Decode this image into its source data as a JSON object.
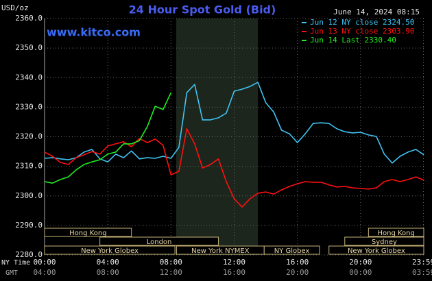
{
  "chart_data": {
    "type": "line",
    "title": "24 Hour Spot Gold (Bid)",
    "source": "www.kitco.com",
    "timestamp": "June 14, 2024 08:15",
    "y_label": "USD/oz",
    "x_label": "NY Time",
    "x2_label": "GMT",
    "x": [
      0,
      0.5,
      1,
      1.5,
      2,
      2.5,
      3,
      3.5,
      4,
      4.5,
      5,
      5.5,
      6,
      6.5,
      7,
      7.5,
      8,
      8.5,
      9,
      9.5,
      10,
      10.5,
      11,
      11.5,
      12,
      12.5,
      13,
      13.5,
      14,
      14.5,
      15,
      15.5,
      16,
      16.5,
      17,
      17.5,
      18,
      18.5,
      19,
      19.5,
      20,
      20.5,
      21,
      21.5,
      22,
      22.5,
      23,
      23.5,
      24
    ],
    "series": [
      {
        "name": "Jun 12 NY close 2324.50",
        "color": "#40c4f4",
        "values": [
          2312.7,
          2312.9,
          2312.5,
          2312.2,
          2312.9,
          2314.8,
          2315.7,
          2312.5,
          2311.5,
          2314.1,
          2312.9,
          2315.2,
          2312.5,
          2312.9,
          2312.7,
          2313.4,
          2312.7,
          2316.4,
          2334.9,
          2337.7,
          2325.7,
          2325.7,
          2326.4,
          2328.0,
          2335.4,
          2336.1,
          2337.0,
          2338.4,
          2331.5,
          2328.4,
          2322.2,
          2321.0,
          2318.0,
          2321.0,
          2324.5,
          2324.7,
          2324.5,
          2322.7,
          2321.7,
          2321.3,
          2321.5,
          2320.6,
          2320.1,
          2314.1,
          2311.1,
          2313.4,
          2314.8,
          2315.7,
          2313.9
        ]
      },
      {
        "name": "Jun 13 NY close 2303.90",
        "color": "#ff1010",
        "values": [
          2314.8,
          2313.4,
          2311.3,
          2310.6,
          2312.9,
          2313.9,
          2315.0,
          2314.1,
          2316.9,
          2317.6,
          2318.3,
          2316.6,
          2319.4,
          2318.0,
          2319.2,
          2317.1,
          2307.1,
          2308.3,
          2322.7,
          2317.6,
          2309.4,
          2310.6,
          2312.5,
          2304.8,
          2299.0,
          2296.2,
          2299.0,
          2300.9,
          2301.3,
          2300.6,
          2302.0,
          2303.2,
          2304.1,
          2304.8,
          2304.6,
          2304.6,
          2303.7,
          2303.0,
          2303.2,
          2302.7,
          2302.5,
          2302.3,
          2302.7,
          2304.8,
          2305.5,
          2304.8,
          2305.5,
          2306.4,
          2305.3
        ]
      },
      {
        "name": "Jun 14 Last 2330.40",
        "color": "#20f020",
        "values": [
          2304.8,
          2304.3,
          2305.5,
          2306.4,
          2308.8,
          2310.6,
          2311.5,
          2312.2,
          2314.1,
          2314.8,
          2317.6,
          2317.6,
          2318.7,
          2323.4,
          2330.3,
          2329.2,
          2334.9,
          null,
          null,
          null,
          null,
          null,
          null,
          null,
          null,
          null,
          null,
          null,
          null,
          null,
          null,
          null,
          null,
          null,
          null,
          null,
          null,
          null,
          null,
          null,
          null,
          null,
          null,
          null,
          null,
          null,
          null,
          null,
          null
        ]
      }
    ],
    "xlim": [
      0,
      24
    ],
    "xticks": [
      {
        "value": 0,
        "label": "00:00"
      },
      {
        "value": 4,
        "label": "04:00"
      },
      {
        "value": 8,
        "label": "08:00"
      },
      {
        "value": 12,
        "label": "12:00"
      },
      {
        "value": 16,
        "label": "16:00"
      },
      {
        "value": 20,
        "label": "20:00"
      },
      {
        "value": 23.98,
        "label": "23:59"
      }
    ],
    "x2ticks": [
      {
        "value": 0,
        "label": "04:00"
      },
      {
        "value": 4,
        "label": "08:00"
      },
      {
        "value": 8,
        "label": "12:00"
      },
      {
        "value": 12,
        "label": "16:00"
      },
      {
        "value": 16,
        "label": "20:00"
      },
      {
        "value": 20,
        "label": "00:00"
      },
      {
        "value": 23.98,
        "label": "03:59"
      }
    ],
    "ylim": [
      2280,
      2360
    ],
    "yticks": [
      {
        "value": 2280,
        "label": "2280.0"
      },
      {
        "value": 2290,
        "label": "2290.0"
      },
      {
        "value": 2300,
        "label": "2300.0"
      },
      {
        "value": 2310,
        "label": "2310.0"
      },
      {
        "value": 2320,
        "label": "2320.0"
      },
      {
        "value": 2330,
        "label": "2330.0"
      },
      {
        "value": 2340,
        "label": "2340.0"
      },
      {
        "value": 2350,
        "label": "2350.0"
      },
      {
        "value": 2360,
        "label": "2360.0"
      }
    ],
    "grid": true,
    "highlight_x": [
      8.33,
      13.5
    ],
    "session_rows": [
      [
        {
          "label": "Hong Kong",
          "start": 0,
          "end": 5.5
        },
        {
          "label": "Hong Kong",
          "start": 20.5,
          "end": 24
        }
      ],
      [
        {
          "label": "London",
          "start": 3.5,
          "end": 11
        },
        {
          "label": "Sydney",
          "start": 19,
          "end": 24
        }
      ],
      [
        {
          "label": "New York Globex",
          "start": 0,
          "end": 8.25
        },
        {
          "label": "New York NYMEX",
          "start": 8.35,
          "end": 13.9
        },
        {
          "label": "NY Globex",
          "start": 13.9,
          "end": 17.4
        },
        {
          "label": "New York Globex",
          "start": 18,
          "end": 24
        }
      ]
    ]
  }
}
